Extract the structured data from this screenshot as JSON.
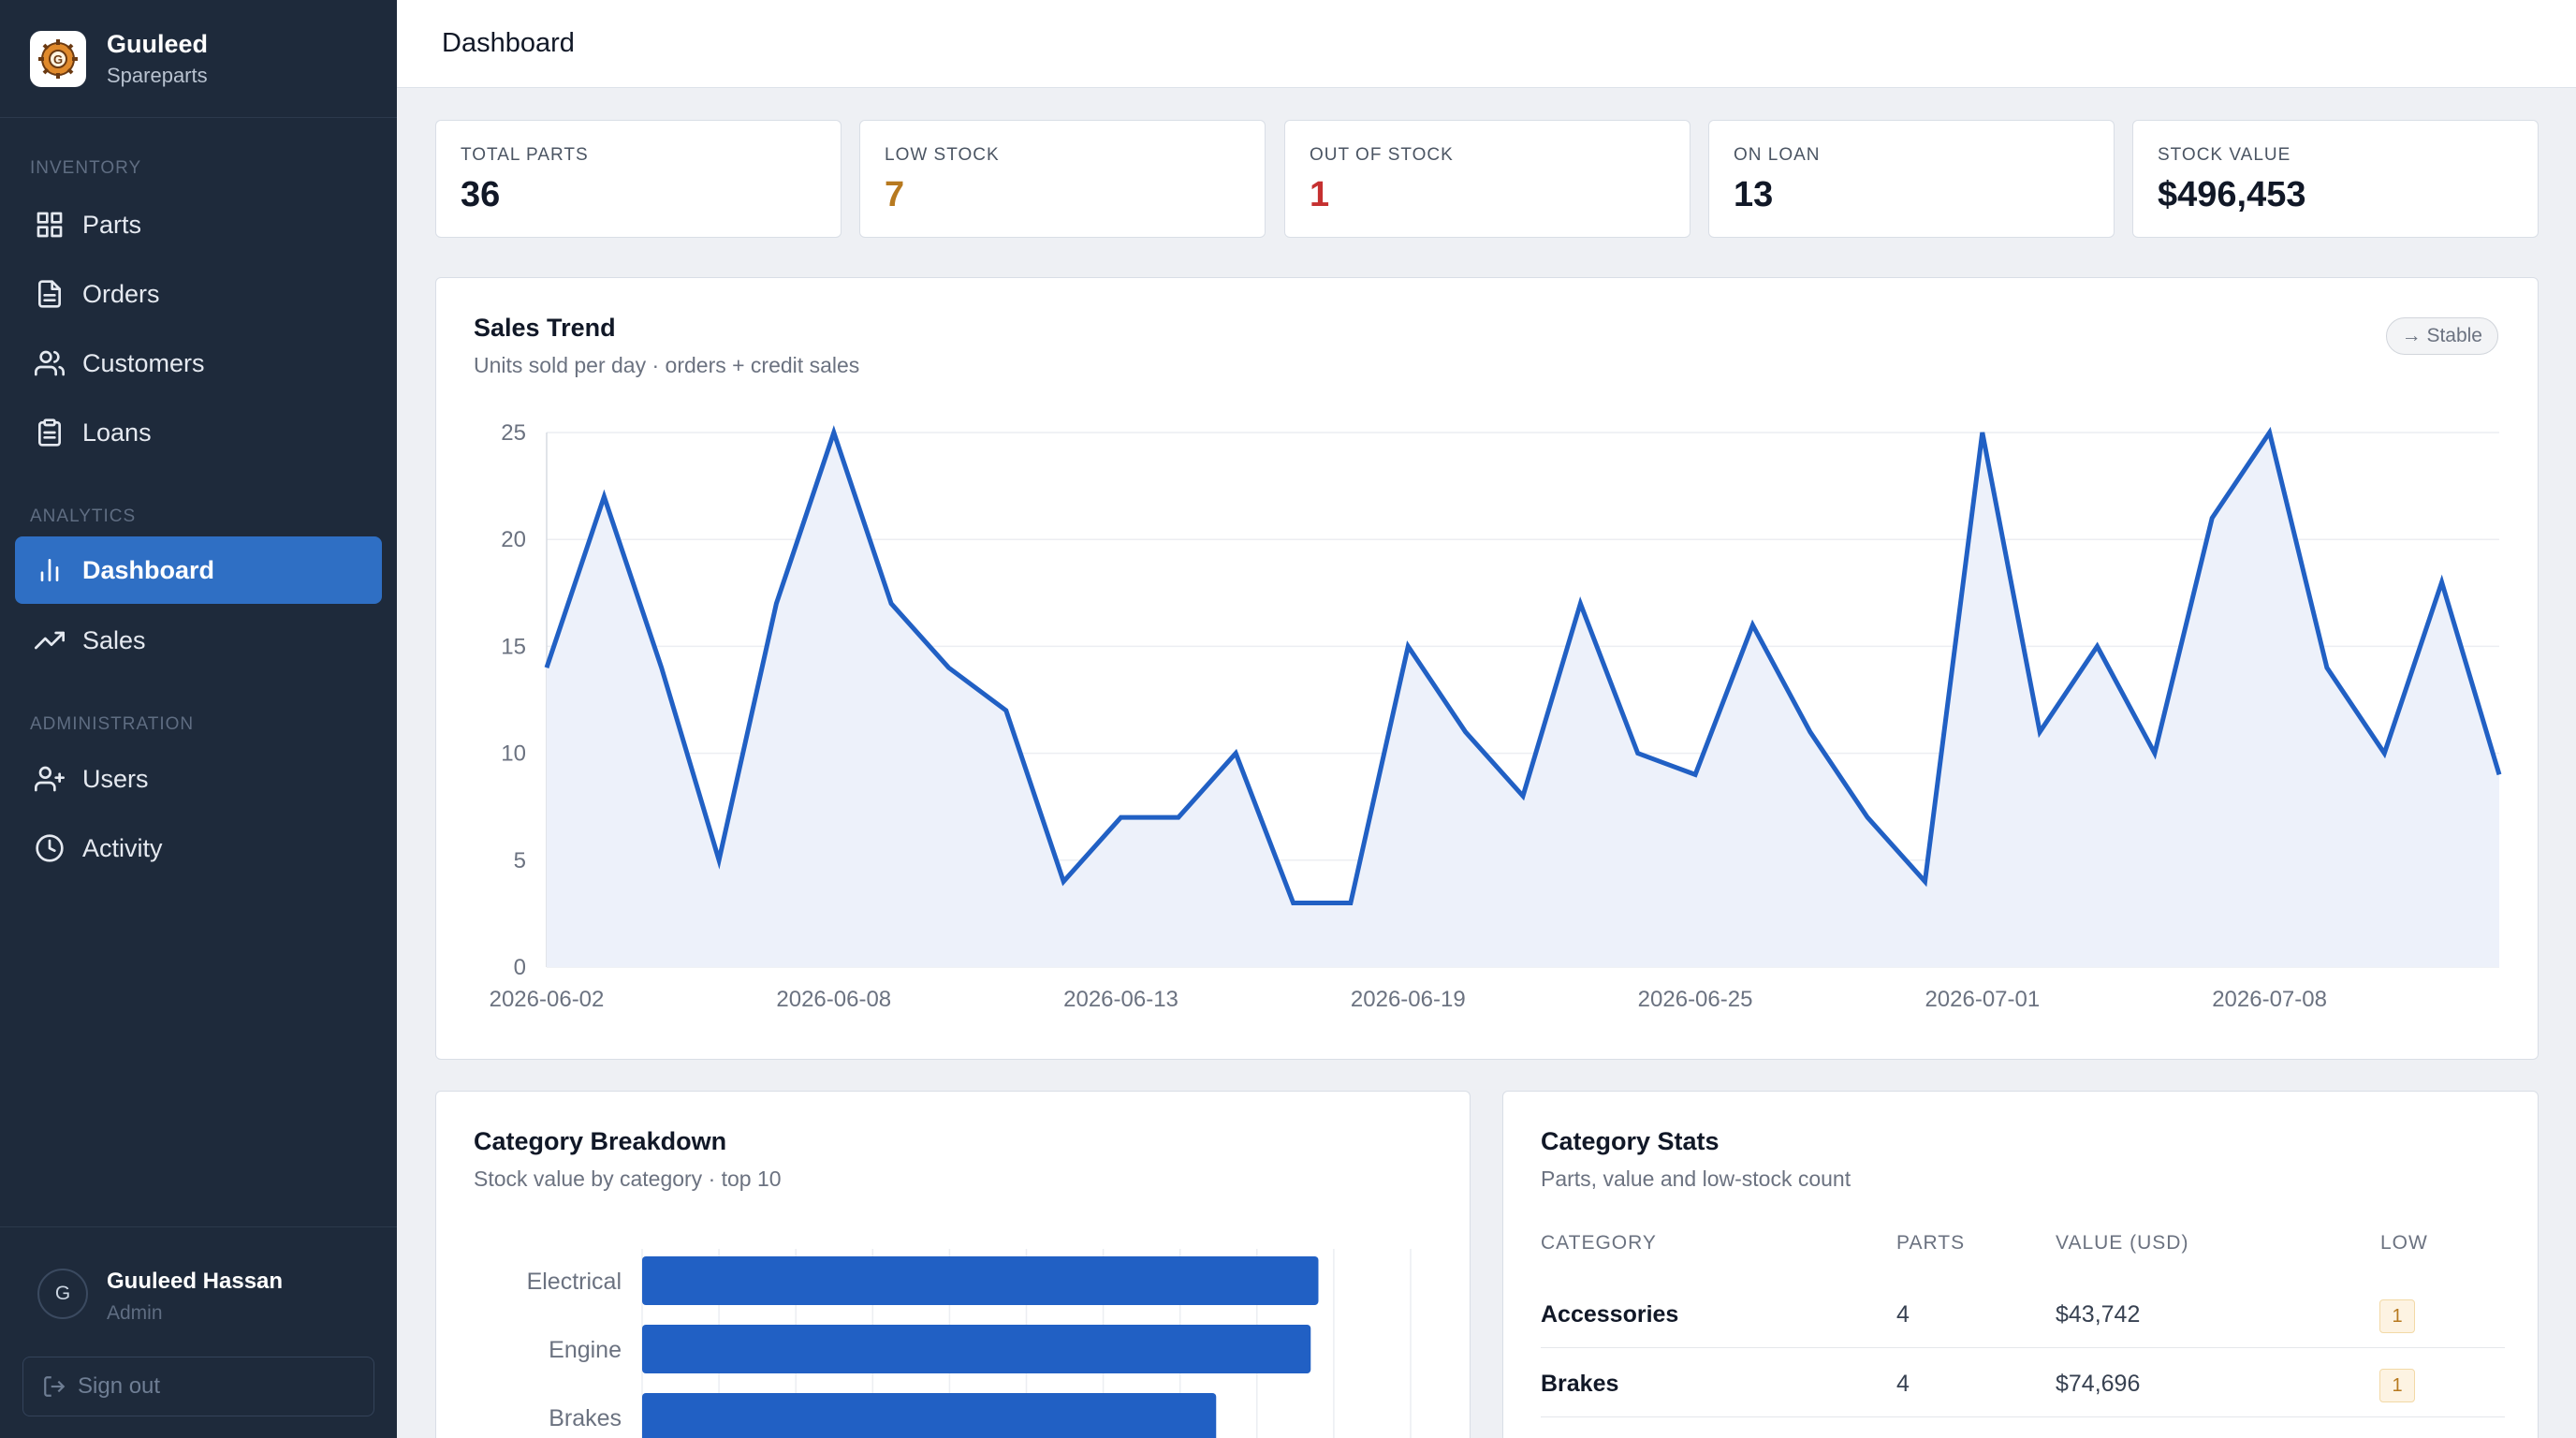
{
  "brand": {
    "name": "Guuleed",
    "subtitle": "Spareparts"
  },
  "sidebar": {
    "sections": [
      {
        "label": "Inventory"
      },
      {
        "label": "Analytics"
      },
      {
        "label": "Administration"
      }
    ],
    "items": [
      {
        "label": "Parts",
        "icon": "grid-icon"
      },
      {
        "label": "Orders",
        "icon": "document-icon"
      },
      {
        "label": "Customers",
        "icon": "users-icon"
      },
      {
        "label": "Loans",
        "icon": "clipboard-icon"
      },
      {
        "label": "Dashboard",
        "icon": "bar-chart-icon",
        "active": true
      },
      {
        "label": "Sales",
        "icon": "trending-up-icon"
      },
      {
        "label": "Users",
        "icon": "user-plus-icon"
      },
      {
        "label": "Activity",
        "icon": "clock-icon"
      }
    ],
    "user": {
      "initial": "G",
      "name": "Guuleed Hassan",
      "role": "Admin"
    },
    "signout_label": "Sign out"
  },
  "header": {
    "title": "Dashboard"
  },
  "stats": [
    {
      "label": "Total Parts",
      "value": "36",
      "color": "#111827"
    },
    {
      "label": "Low Stock",
      "value": "7",
      "color": "#b7791f"
    },
    {
      "label": "Out of Stock",
      "value": "1",
      "color": "#c53030"
    },
    {
      "label": "On Loan",
      "value": "13",
      "color": "#111827"
    },
    {
      "label": "Stock Value",
      "value": "$496,453",
      "color": "#111827"
    }
  ],
  "sales_trend": {
    "title": "Sales Trend",
    "subtitle": "Units sold per day · orders + credit sales",
    "badge": "→ Stable"
  },
  "category_breakdown": {
    "title": "Category Breakdown",
    "subtitle": "Stock value by category · top 10"
  },
  "category_stats": {
    "title": "Category Stats",
    "subtitle": "Parts, value and low-stock count",
    "columns": [
      "CATEGORY",
      "PARTS",
      "VALUE (USD)",
      "LOW"
    ],
    "rows": [
      {
        "category": "Accessories",
        "parts": "4",
        "value": "$43,742",
        "low": "1"
      },
      {
        "category": "Brakes",
        "parts": "4",
        "value": "$74,696",
        "low": "1"
      }
    ]
  },
  "chart_data": [
    {
      "type": "area",
      "x_tick_labels": [
        "2026-06-02",
        "2026-06-08",
        "2026-06-13",
        "2026-06-19",
        "2026-06-25",
        "2026-07-01",
        "2026-07-08"
      ],
      "x_tick_index": [
        0,
        5,
        10,
        15,
        20,
        25,
        30
      ],
      "y_ticks": [
        0,
        5,
        10,
        15,
        20,
        25
      ],
      "ylim": [
        0,
        25
      ],
      "values": [
        14,
        22,
        14,
        5,
        17,
        25,
        17,
        14,
        12,
        4,
        7,
        7,
        10,
        3,
        3,
        15,
        11,
        8,
        17,
        10,
        9,
        16,
        11,
        7,
        4,
        25,
        11,
        15,
        10,
        21,
        25,
        14,
        10,
        18,
        9
      ],
      "line_color": "#2160c4",
      "fill_color": "#edf1fa",
      "grid": true
    },
    {
      "type": "bar",
      "orientation": "horizontal",
      "categories": [
        "Electrical",
        "Engine",
        "Brakes"
      ],
      "values": [
        88000,
        87000,
        74696
      ],
      "xlim": [
        0,
        100000
      ],
      "bar_color": "#2160c4",
      "grid": true
    }
  ]
}
